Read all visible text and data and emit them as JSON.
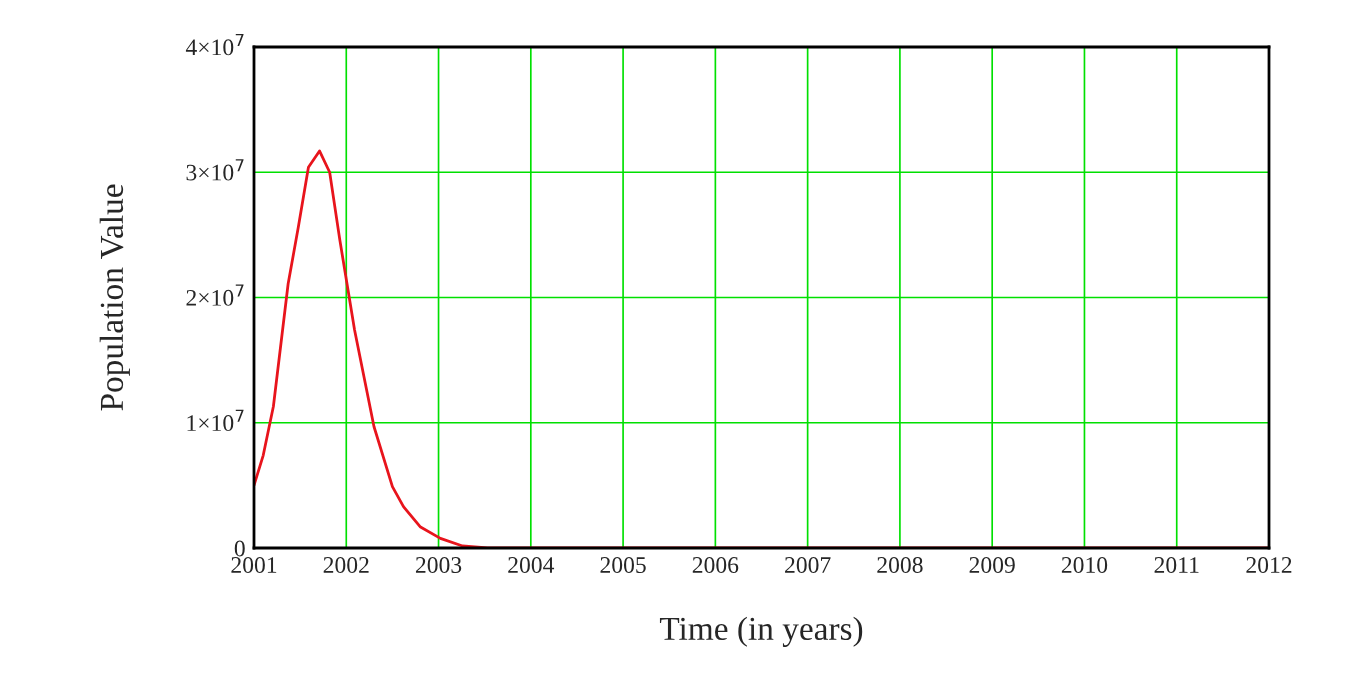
{
  "chart_data": {
    "type": "line",
    "xlabel": "Time (in years)",
    "ylabel": "Population Value",
    "x": [
      2001.0,
      2001.1,
      2001.21,
      2001.37,
      2001.48,
      2001.59,
      2001.71,
      2001.82,
      2001.93,
      2002.09,
      2002.3,
      2002.5,
      2002.62,
      2002.8,
      2003.02,
      2003.26,
      2003.53,
      2004,
      2012
    ],
    "series": [
      {
        "color": "#e8141c",
        "values": [
          5000000,
          7400000,
          11300000,
          21100000,
          25600000,
          30400000,
          31700000,
          30000000,
          24600000,
          17400000,
          9700000,
          4900000,
          3300000,
          1700000,
          770000,
          160000,
          0,
          0,
          0
        ]
      }
    ],
    "xlim": [
      2001,
      2012
    ],
    "xticks": [
      2001,
      2002,
      2003,
      2004,
      2005,
      2006,
      2007,
      2008,
      2009,
      2010,
      2011,
      2012
    ],
    "ylim": [
      0,
      40000000
    ],
    "yticks": [
      {
        "value": 0,
        "label": "0"
      },
      {
        "value": 10000000,
        "label": "1×10$^{7}$"
      },
      {
        "value": 20000000,
        "label": "2×10$^{7}$"
      },
      {
        "value": 30000000,
        "label": "3×10$^{7}$"
      },
      {
        "value": 40000000,
        "label": "4×10$^{7}$"
      }
    ],
    "grid": true,
    "marker": "none",
    "line_style": "solid"
  }
}
